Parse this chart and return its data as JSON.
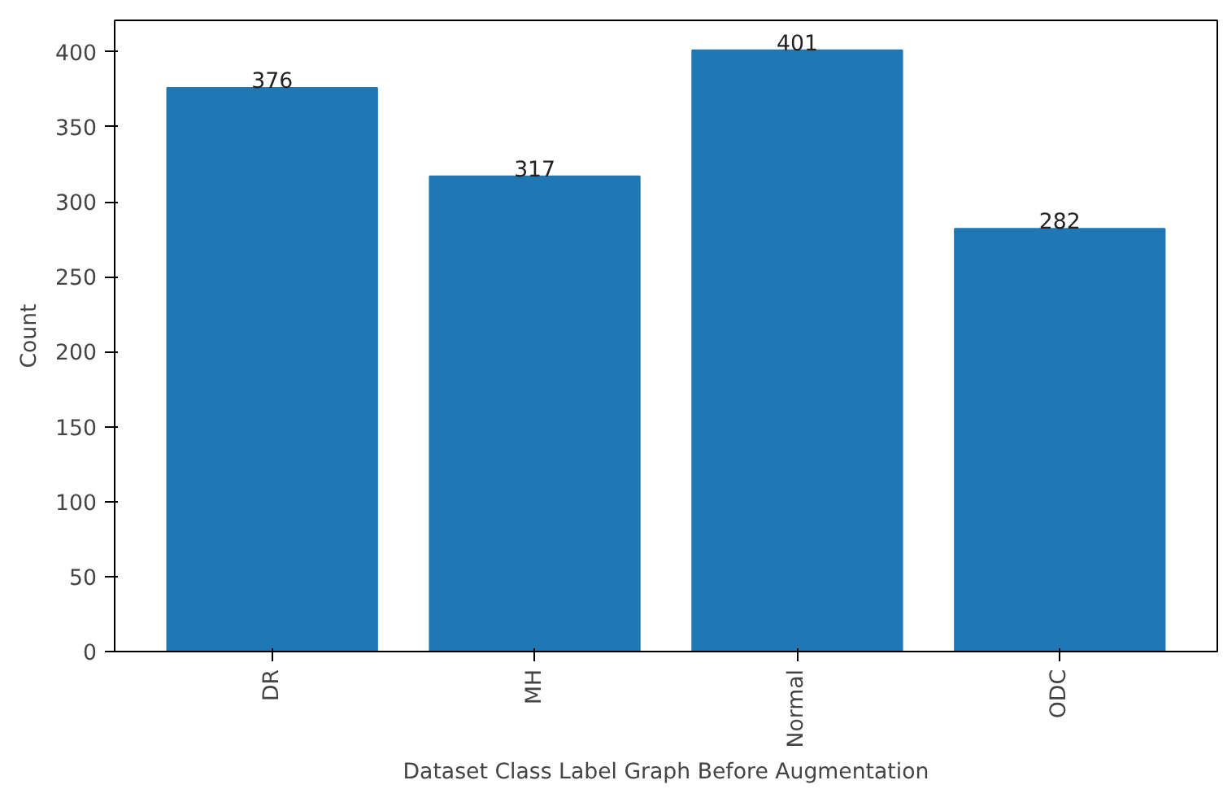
{
  "chart_data": {
    "type": "bar",
    "xlabel": "Dataset Class Label Graph Before Augmentation",
    "ylabel": "Count",
    "categories": [
      "DR",
      "MH",
      "Normal",
      "ODC"
    ],
    "values": [
      376,
      317,
      401,
      282
    ],
    "color": "#1f77b4",
    "ylim": [
      0,
      421
    ],
    "yticks": [
      0,
      50,
      100,
      150,
      200,
      250,
      300,
      350,
      400
    ],
    "data_labels": true,
    "grid": false
  }
}
